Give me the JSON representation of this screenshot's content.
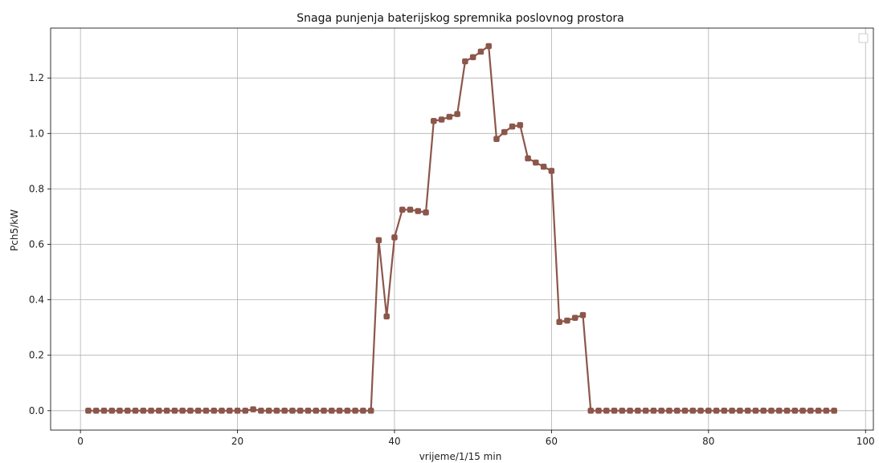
{
  "chart_data": {
    "type": "line",
    "title": "Snaga punjenja baterijskog spremnika poslovnog prostora",
    "xlabel": "vrijeme/1/15 min",
    "ylabel": "Pch5/kW",
    "xlim": [
      -3.8,
      101
    ],
    "ylim": [
      -0.07,
      1.38
    ],
    "xticks": [
      0,
      20,
      40,
      60,
      80,
      100
    ],
    "xtick_labels": [
      "0",
      "20",
      "40",
      "60",
      "80",
      "100"
    ],
    "yticks": [
      0.0,
      0.2,
      0.4,
      0.6,
      0.8,
      1.0,
      1.2
    ],
    "ytick_labels": [
      "0.0",
      "0.2",
      "0.4",
      "0.6",
      "0.8",
      "1.0",
      "1.2"
    ],
    "grid": true,
    "legend": "top-right (empty)",
    "series_color": "#8c564b",
    "series": [
      {
        "x": [
          1,
          2,
          3,
          4,
          5,
          6,
          7,
          8,
          9,
          10,
          11,
          12,
          13,
          14,
          15,
          16,
          17,
          18,
          19,
          20,
          21,
          22,
          23,
          24,
          25,
          26,
          27,
          28,
          29,
          30,
          31,
          32,
          33,
          34,
          35,
          36,
          37,
          38,
          39,
          40,
          41,
          42,
          43,
          44,
          45,
          46,
          47,
          48,
          49,
          50,
          51,
          52,
          53,
          54,
          55,
          56,
          57,
          58,
          59,
          60,
          61,
          62,
          63,
          64,
          65,
          66,
          67,
          68,
          69,
          70,
          71,
          72,
          73,
          74,
          75,
          76,
          77,
          78,
          79,
          80,
          81,
          82,
          83,
          84,
          85,
          86,
          87,
          88,
          89,
          90,
          91,
          92,
          93,
          94,
          95,
          96
        ],
        "values": [
          0,
          0,
          0,
          0,
          0,
          0,
          0,
          0,
          0,
          0,
          0,
          0,
          0,
          0,
          0,
          0,
          0,
          0,
          0,
          0,
          0,
          0.005,
          0,
          0,
          0,
          0,
          0,
          0,
          0,
          0,
          0,
          0,
          0,
          0,
          0,
          0,
          0,
          0.615,
          0.34,
          0.625,
          0.725,
          0.725,
          0.72,
          0.715,
          1.045,
          1.05,
          1.06,
          1.07,
          1.26,
          1.275,
          1.295,
          1.315,
          0.98,
          1.005,
          1.025,
          1.03,
          0.91,
          0.895,
          0.88,
          0.865,
          0.32,
          0.325,
          0.335,
          0.345,
          0,
          0,
          0,
          0,
          0,
          0,
          0,
          0,
          0,
          0,
          0,
          0,
          0,
          0,
          0,
          0,
          0,
          0,
          0,
          0,
          0,
          0,
          0,
          0,
          0,
          0,
          0,
          0,
          0,
          0,
          0,
          0
        ]
      }
    ]
  }
}
